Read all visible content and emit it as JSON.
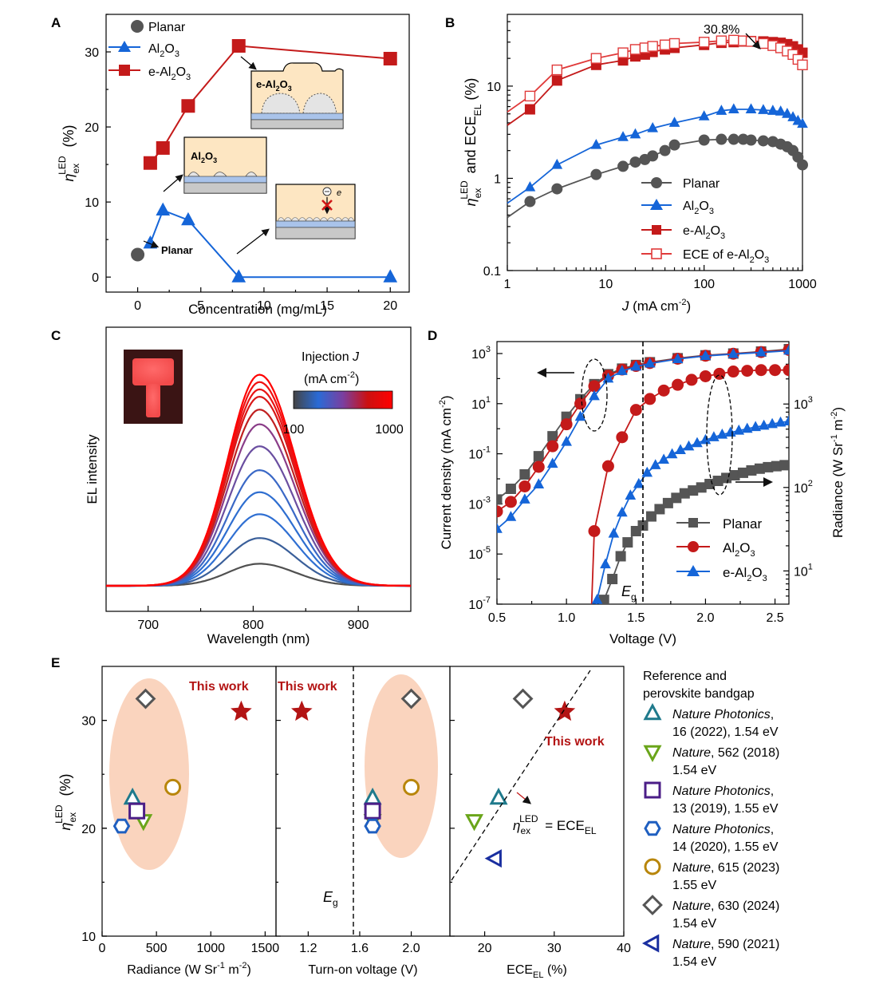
{
  "chart_data": [
    {
      "panel": "A",
      "type": "line",
      "xlabel": "Concentration (mg/mL)",
      "ylabel": "η_ex^LED (%)",
      "xlim": [
        -2.5,
        21.5
      ],
      "ylim": [
        -2,
        35
      ],
      "xticks": [
        0,
        5,
        10,
        15,
        20
      ],
      "yticks": [
        0,
        10,
        20,
        30
      ],
      "legend": "top-left",
      "series": [
        {
          "name": "Planar",
          "color": "#555555",
          "marker": "circle",
          "x": [
            0
          ],
          "y": [
            3.0
          ]
        },
        {
          "name": "Al2O3",
          "color": "#1565d8",
          "marker": "triangle",
          "x": [
            1,
            2,
            4,
            8,
            20
          ],
          "y": [
            4.5,
            8.9,
            7.6,
            0.0,
            0.0
          ]
        },
        {
          "name": "e-Al2O3",
          "color": "#c41a1a",
          "marker": "square",
          "x": [
            1,
            2,
            4,
            8,
            20
          ],
          "y": [
            15.2,
            17.2,
            22.8,
            30.8,
            29.1
          ]
        }
      ],
      "insets": [
        {
          "label": "e-Al2O3"
        },
        {
          "label": "Al2O3"
        },
        {
          "label": "e"
        },
        {
          "label": "Planar"
        }
      ]
    },
    {
      "panel": "B",
      "type": "line",
      "xscale": "log",
      "yscale": "log",
      "xlabel": "J (mA cm-2)",
      "ylabel": "η_ex^LED and ECE_EL (%)",
      "xlim": [
        1,
        1000
      ],
      "ylim": [
        0.1,
        60
      ],
      "xticks": [
        1,
        10,
        100,
        1000
      ],
      "yticks": [
        0.1,
        1,
        10
      ],
      "legend": "bottom-right",
      "annotation": "30.8%",
      "series": [
        {
          "name": "Planar",
          "color": "#555555",
          "marker": "circle",
          "x": [
            1.7,
            3.2,
            8,
            15,
            20,
            25,
            30,
            40,
            50,
            100,
            150,
            200,
            250,
            300,
            400,
            500,
            600,
            700,
            800,
            900,
            1000
          ],
          "y": [
            0.56,
            0.77,
            1.1,
            1.35,
            1.5,
            1.6,
            1.75,
            2.0,
            2.3,
            2.6,
            2.65,
            2.65,
            2.65,
            2.6,
            2.55,
            2.5,
            2.35,
            2.2,
            2.0,
            1.7,
            1.4
          ]
        },
        {
          "name": "Al2O3",
          "color": "#1565d8",
          "marker": "triangle",
          "x": [
            1.7,
            3.2,
            8,
            15,
            20,
            30,
            50,
            100,
            150,
            200,
            300,
            400,
            500,
            600,
            700,
            800,
            900,
            1000
          ],
          "y": [
            0.8,
            1.4,
            2.3,
            2.8,
            3.0,
            3.5,
            4.0,
            4.7,
            5.4,
            5.6,
            5.6,
            5.5,
            5.4,
            5.3,
            5.0,
            4.6,
            4.2,
            3.9
          ]
        },
        {
          "name": "e-Al2O3",
          "color": "#c41a1a",
          "marker": "square",
          "x": [
            1.7,
            3.2,
            8,
            15,
            20,
            25,
            30,
            40,
            50,
            100,
            150,
            200,
            250,
            300,
            400,
            500,
            600,
            700,
            800,
            900,
            1000
          ],
          "y": [
            5.6,
            11.5,
            17.0,
            19.0,
            21.0,
            22.0,
            23.5,
            25.0,
            26.0,
            28.0,
            29.5,
            30.0,
            30.5,
            30.8,
            30.5,
            30.0,
            29.5,
            28.5,
            27.0,
            25.0,
            23.0
          ]
        },
        {
          "name": "ECE of e-Al2O3",
          "color": "#e03a3a",
          "marker": "open-square",
          "x": [
            1.7,
            3.2,
            8,
            15,
            20,
            25,
            30,
            40,
            50,
            100,
            150,
            200,
            250,
            300,
            400,
            500,
            600,
            700,
            800,
            900,
            1000
          ],
          "y": [
            7.8,
            15.0,
            20.0,
            23.0,
            25.0,
            26.0,
            27.0,
            28.0,
            29.0,
            30.0,
            31.0,
            31.5,
            31.0,
            30.5,
            29.0,
            27.5,
            26.0,
            24.0,
            22.0,
            19.5,
            17.0
          ]
        }
      ]
    },
    {
      "panel": "C",
      "type": "line",
      "xlabel": "Wavelength (nm)",
      "ylabel": "EL intensity",
      "xlim": [
        660,
        950
      ],
      "xticks": [
        700,
        800,
        900
      ],
      "peak_nm": 806,
      "colorbar": {
        "title": "Injection J",
        "unit": "(mA cm-2)",
        "min_label": "100",
        "max_label": "1000",
        "colors": [
          "#444444",
          "#2a6bd6",
          "#7a3fa0",
          "#cc1010",
          "#ff0000"
        ]
      },
      "peak_heights": [
        0.12,
        0.26,
        0.39,
        0.51,
        0.63,
        0.76,
        0.88,
        0.96,
        1.03,
        1.07,
        1.11,
        1.15
      ],
      "series_colors": [
        "#505050",
        "#3a5f9a",
        "#2f6fd2",
        "#2e6ed0",
        "#3a68c6",
        "#6a4ea0",
        "#8a3d88",
        "#c02020",
        "#d81818",
        "#e81414",
        "#f01010",
        "#ff0000"
      ]
    },
    {
      "panel": "D",
      "type": "line",
      "xlabel": "Voltage (V)",
      "ylabel": "Current density (mA cm-2)",
      "y2label": "Radiance (W Sr-1 m-2)",
      "yscale": "log",
      "y2scale": "log",
      "xlim": [
        0.5,
        2.6
      ],
      "ylim": [
        1e-07,
        3000
      ],
      "y2lim": [
        4,
        5600
      ],
      "xticks": [
        0.5,
        1.0,
        1.5,
        2.0,
        2.5
      ],
      "yticks": [
        "10^-7",
        "10^-5",
        "10^-3",
        "10^-1",
        "10^1",
        "10^3"
      ],
      "y2ticks": [
        "10^1",
        "10^2",
        "10^3"
      ],
      "vline": {
        "x": 1.54,
        "label": "E_g"
      },
      "legend": "bottom-right",
      "series": [
        {
          "name": "Planar",
          "color": "#555555",
          "marker": "square",
          "axis": "left",
          "x": [
            0.5,
            0.6,
            0.7,
            0.8,
            0.9,
            1.0,
            1.1,
            1.2,
            1.3,
            1.4,
            1.5,
            1.6,
            1.8,
            2.0,
            2.2,
            2.4,
            2.6
          ],
          "y": [
            0.0015,
            0.004,
            0.015,
            0.08,
            0.5,
            3.0,
            15.0,
            60.0,
            150.0,
            250.0,
            350.0,
            450.0,
            650.0,
            850.0,
            1000.0,
            1200.0,
            1500.0
          ]
        },
        {
          "name": "Planar",
          "color": "#555555",
          "marker": "square",
          "axis": "right",
          "x": [
            1.27,
            1.33,
            1.39,
            1.44,
            1.5,
            1.55,
            1.61,
            1.67,
            1.73,
            1.79,
            1.85,
            1.91,
            1.97,
            2.03,
            2.09,
            2.15,
            2.21,
            2.27,
            2.33,
            2.39,
            2.45,
            2.51,
            2.57
          ],
          "y": [
            4.5,
            8,
            15,
            22,
            30,
            35,
            45,
            55,
            65,
            75,
            85,
            92,
            100,
            110,
            120,
            130,
            140,
            150,
            160,
            168,
            175,
            180,
            185
          ]
        },
        {
          "name": "Al2O3",
          "color": "#c41a1a",
          "marker": "circle",
          "axis": "right",
          "x": [
            1.2,
            1.3,
            1.4,
            1.5,
            1.6,
            1.7,
            1.8,
            1.9,
            2.0,
            2.1,
            2.2,
            2.3,
            2.4,
            2.5,
            2.6
          ],
          "y": [
            30,
            180,
            400,
            850,
            1150,
            1450,
            1700,
            1950,
            2150,
            2300,
            2450,
            2500,
            2550,
            2550,
            2550
          ]
        },
        {
          "name": "Al2O3",
          "color": "#c41a1a",
          "marker": "circle",
          "axis": "left",
          "x": [
            0.5,
            0.6,
            0.7,
            0.8,
            0.9,
            1.0,
            1.1,
            1.2,
            1.3,
            1.4,
            1.5,
            1.6,
            1.8,
            2.0,
            2.2,
            2.4,
            2.6
          ],
          "y": [
            0.0005,
            0.0012,
            0.005,
            0.03,
            0.2,
            1.5,
            10.0,
            50.0,
            130.0,
            230.0,
            320.0,
            420.0,
            620.0,
            820.0,
            980.0,
            1150.0,
            1400.0
          ]
        },
        {
          "name": "e-Al2O3",
          "color": "#1565d8",
          "marker": "triangle",
          "axis": "left",
          "x": [
            0.5,
            0.6,
            0.7,
            0.8,
            0.9,
            1.0,
            1.1,
            1.2,
            1.3,
            1.4,
            1.5,
            1.6,
            1.8,
            2.0,
            2.2,
            2.4,
            2.6
          ],
          "y": [
            0.0001,
            0.0003,
            0.0015,
            0.006,
            0.04,
            0.3,
            3.0,
            20.0,
            100.0,
            200.0,
            300.0,
            400.0,
            600.0,
            800.0,
            950.0,
            1100.0,
            1300.0
          ]
        },
        {
          "name": "e-Al2O3",
          "color": "#1565d8",
          "marker": "triangle",
          "axis": "right",
          "x": [
            1.22,
            1.28,
            1.34,
            1.4,
            1.46,
            1.52,
            1.58,
            1.64,
            1.7,
            1.76,
            1.82,
            1.88,
            1.94,
            2.0,
            2.06,
            2.12,
            2.18,
            2.24,
            2.3,
            2.36,
            2.42,
            2.48,
            2.54,
            2.6
          ],
          "y": [
            4.5,
            12,
            28,
            50,
            80,
            110,
            150,
            185,
            215,
            250,
            280,
            310,
            340,
            370,
            400,
            430,
            455,
            480,
            505,
            530,
            550,
            575,
            600,
            620
          ]
        }
      ],
      "annotations": {
        "arrow_left": "left axis",
        "arrow_right": "right axis"
      }
    },
    {
      "panel": "E",
      "type": "scatter",
      "ylabel": "η_ex^LED (%)",
      "ylim": [
        10,
        35
      ],
      "yticks": [
        10,
        20,
        30
      ],
      "subpanels": [
        {
          "xlabel": "Radiance (W Sr-1 m-2)",
          "xlim": [
            0,
            1600
          ],
          "xticks": [
            0,
            500,
            1000,
            1500
          ]
        },
        {
          "xlabel": "Turn-on voltage (V)",
          "xlim": [
            0.95,
            2.3
          ],
          "xticks": [
            1.2,
            1.6,
            2.0
          ],
          "vline": {
            "x": 1.54,
            "label": "E_g"
          }
        },
        {
          "xlabel": "ECE_EL (%)",
          "xlim": [
            15,
            40
          ],
          "xticks": [
            20,
            30,
            40
          ],
          "diagonal_label": "η_ex^LED = ECE_EL"
        }
      ],
      "this_work": {
        "label": "This work",
        "eta": 30.8,
        "radiance": 1280,
        "turn_on": 1.15,
        "ece": 31.5,
        "color": "#b31414"
      },
      "legend_title_1": "Reference and",
      "legend_title_2": "perovskite bandgap",
      "references": [
        {
          "journal": "Nature Photonics",
          "line1": ",",
          "line2": "16 (2022), 1.54 eV",
          "marker": "triangle-up",
          "color": "#1f7a8c",
          "eta": 22.8,
          "radiance": 280,
          "turn_on": 1.7,
          "ece": 22.0
        },
        {
          "journal": "Nature",
          "line1": ", 562 (2018)",
          "line2": "1.54 eV",
          "marker": "triangle-down",
          "color": "#6aa51a",
          "eta": 20.7,
          "radiance": 380,
          "turn_on": 1.7,
          "ece": 18.5
        },
        {
          "journal": "Nature Photonics",
          "line1": ",",
          "line2": "13 (2019), 1.55 eV",
          "marker": "square",
          "color": "#4b1e87",
          "eta": 21.6,
          "radiance": 320,
          "turn_on": 1.7,
          "ece": null
        },
        {
          "journal": "Nature Photonics",
          "line1": ",",
          "line2": "14 (2020), 1.55 eV",
          "marker": "hexagon",
          "color": "#1f5fc0",
          "eta": 20.2,
          "radiance": 180,
          "turn_on": 1.7,
          "ece": null
        },
        {
          "journal": "Nature",
          "line1": ", 615 (2023)",
          "line2": "1.55 eV",
          "marker": "circle",
          "color": "#b8860b",
          "eta": 23.8,
          "radiance": 650,
          "turn_on": 2.0,
          "ece": null
        },
        {
          "journal": "Nature",
          "line1": ", 630 (2024)",
          "line2": "1.54 eV",
          "marker": "diamond",
          "color": "#555555",
          "eta": 32.0,
          "radiance": 400,
          "turn_on": 2.0,
          "ece": 25.5
        },
        {
          "journal": "Nature",
          "line1": ", 590 (2021)",
          "line2": "1.54 eV",
          "marker": "triangle-left",
          "color": "#1a2fa0",
          "eta": 17.2,
          "radiance": null,
          "turn_on": null,
          "ece": 21.5
        }
      ]
    }
  ]
}
